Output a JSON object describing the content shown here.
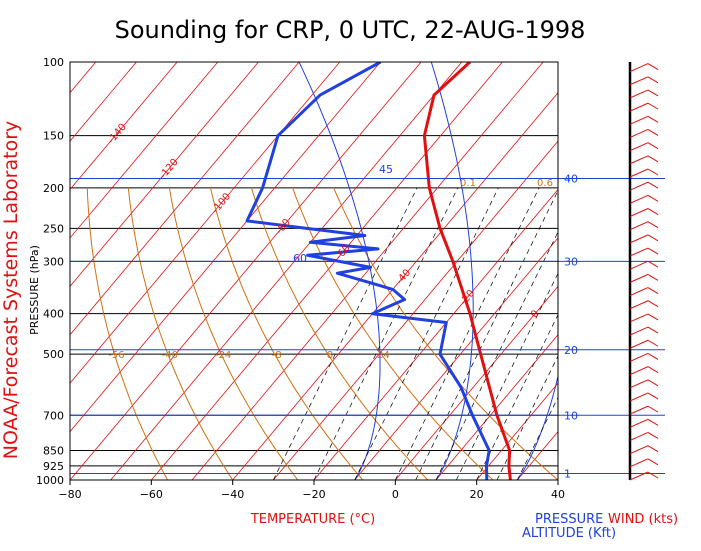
{
  "title": "Sounding for CRP,  0 UTC, 22-AUG-1998",
  "side_label": "NOAA/Forecast Systems Laboratory",
  "y_axis_label": "PRESSURE (hPa)",
  "x_axis_label": "TEMPERATURE (°C)",
  "pressure_label": "PRESSURE",
  "altitude_label": "ALTITUDE (Kft)",
  "wind_label": "WIND (kts)",
  "colors": {
    "temperature": "#e01010",
    "dewpoint": "#2040e0",
    "isotherm": "#e01010",
    "dry_adiabat": "#d07010",
    "moist_adiabat": "#2040e0",
    "mixing_ratio": "#000000",
    "isobar": "#000000",
    "altitude_line": "#2040e0",
    "wind": "#e01010"
  },
  "chart_data": {
    "type": "line",
    "title": "Sounding for CRP,  0 UTC, 22-AUG-1998",
    "xlabel": "TEMPERATURE (°C)",
    "ylabel": "PRESSURE (hPa)",
    "xlim": [
      -80,
      40
    ],
    "ylim": [
      1000,
      100
    ],
    "pressure_ticks": [
      "100",
      "150",
      "200",
      "250",
      "300",
      "400",
      "500",
      "700",
      "850",
      "925",
      "1000"
    ],
    "temperature_ticks": [
      "−80",
      "−60",
      "−40",
      "−20",
      "0",
      "20",
      "40"
    ],
    "altitude_ticks_kft": [
      "1",
      "10",
      "20",
      "30",
      "40"
    ],
    "isotherm_labels": [
      "-180",
      "-160",
      "-140",
      "-120",
      "-100",
      "-80",
      "-60",
      "-40",
      "-20",
      "0",
      "20"
    ],
    "dry_adiabat_labels": [
      "-56",
      "-40",
      "-24",
      "-8",
      "8",
      "24"
    ],
    "moist_adiabat_labels": [
      "45",
      "60",
      "40"
    ],
    "mixing_ratio_labels": [
      "0.1",
      "0.6"
    ],
    "series": [
      {
        "name": "temperature",
        "points": [
          [
            1000,
            28.3
          ],
          [
            925,
            25.0
          ],
          [
            850,
            22.0
          ],
          [
            700,
            11.6
          ],
          [
            500,
            -5.0
          ],
          [
            400,
            -16.0
          ],
          [
            300,
            -31.0
          ],
          [
            250,
            -41.0
          ],
          [
            200,
            -52.0
          ],
          [
            150,
            -64.0
          ],
          [
            120,
            -70.0
          ],
          [
            100,
            -68.0
          ]
        ]
      },
      {
        "name": "dewpoint",
        "points": [
          [
            1000,
            22.5
          ],
          [
            925,
            19.5
          ],
          [
            850,
            17.0
          ],
          [
            700,
            5.6
          ],
          [
            600,
            -3.0
          ],
          [
            500,
            -15.0
          ],
          [
            420,
            -20.0
          ],
          [
            400,
            -40.0
          ],
          [
            370,
            -35.0
          ],
          [
            350,
            -40.0
          ],
          [
            320,
            -57.0
          ],
          [
            310,
            -50.0
          ],
          [
            290,
            -68.0
          ],
          [
            280,
            -52.0
          ],
          [
            270,
            -70.0
          ],
          [
            260,
            -58.0
          ],
          [
            250,
            -74.0
          ],
          [
            240,
            -90.0
          ],
          [
            200,
            -93.0
          ],
          [
            150,
            -100.0
          ],
          [
            120,
            -98.0
          ],
          [
            100,
            -90.0
          ]
        ]
      }
    ]
  }
}
